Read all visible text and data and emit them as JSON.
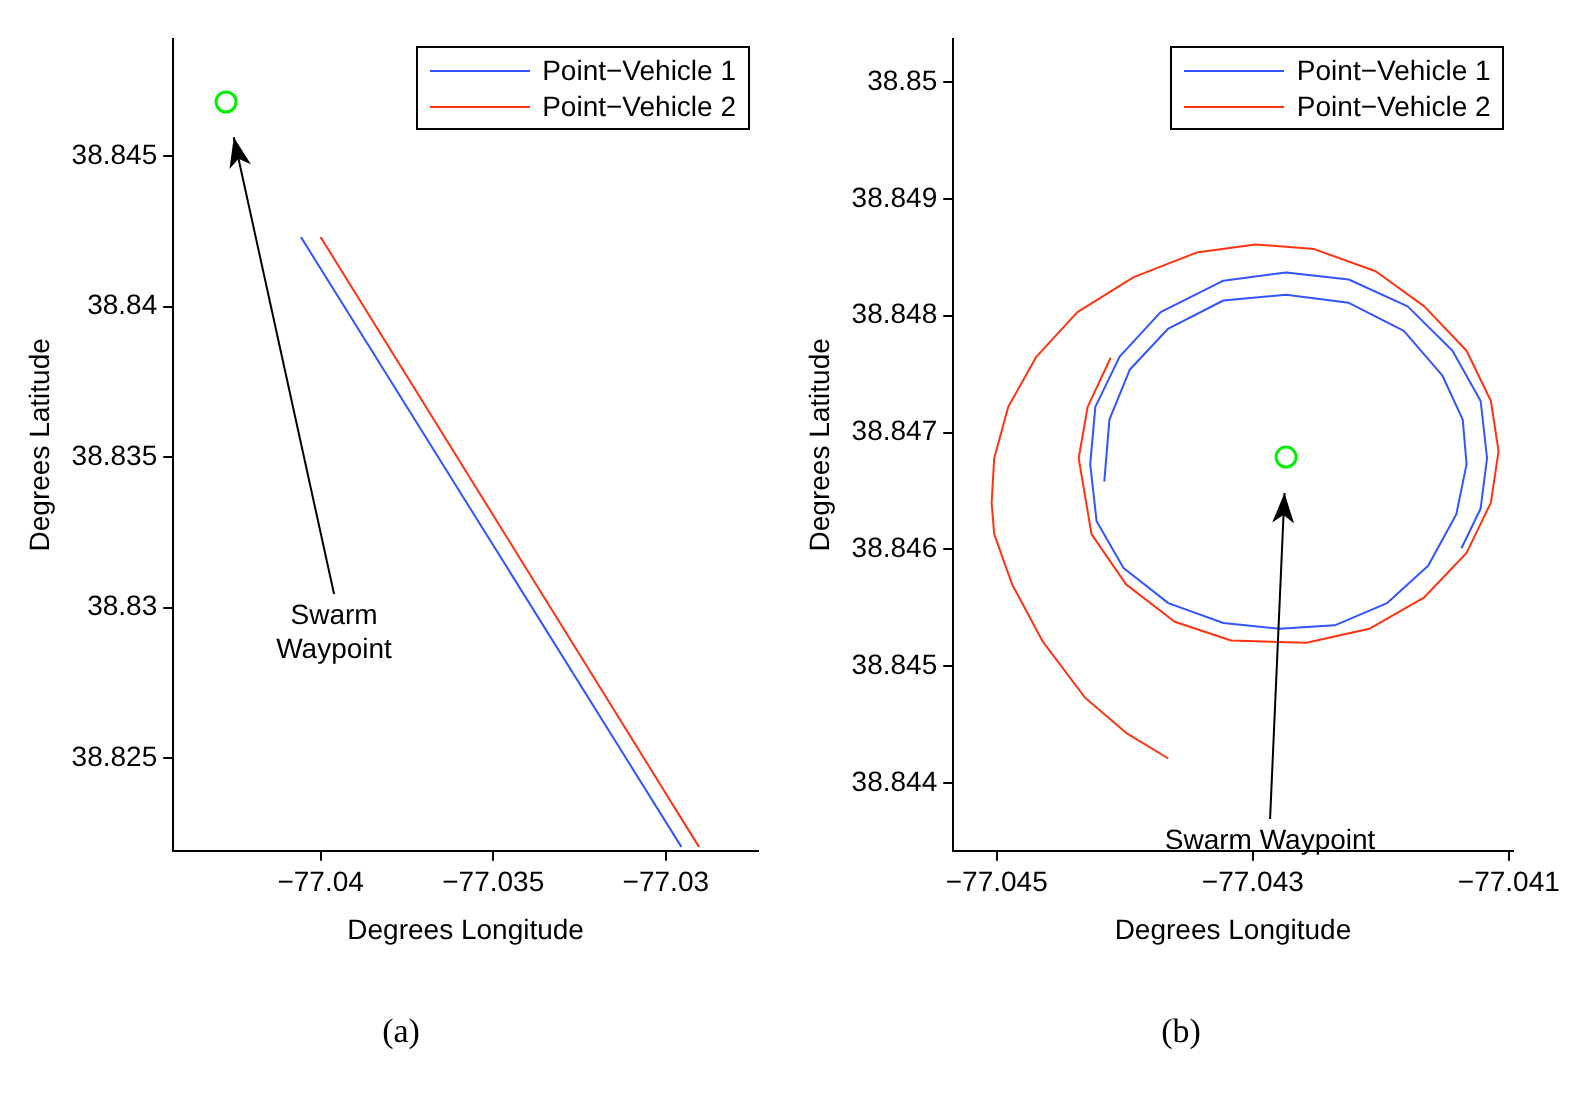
{
  "chart_data": [
    {
      "type": "line",
      "xlabel": "Degrees Longitude",
      "ylabel": "Degrees Latitude",
      "xlim": [
        -77.04427,
        -77.02733
      ],
      "ylim": [
        38.82192,
        38.8489
      ],
      "xticks": [
        -77.04,
        -77.035,
        -77.03
      ],
      "yticks": [
        38.825,
        38.83,
        38.835,
        38.84,
        38.845
      ],
      "grid": false,
      "legend": "top right",
      "line_style": "solid",
      "marker": "none",
      "annotations": [
        "Swarm\nWaypoint",
        "(a)"
      ],
      "series": [
        {
          "name": "Point−Vehicle 1",
          "color": "#3355ff",
          "x": [
            -77.04057,
            -77.02955
          ],
          "values": [
            38.84231,
            38.82205
          ]
        },
        {
          "name": "Point−Vehicle 2",
          "color": "#ff3311",
          "x": [
            -77.04,
            -77.02904
          ],
          "values": [
            38.84231,
            38.82205
          ]
        },
        {
          "type": "scatter",
          "marker": "circle",
          "color": "#00ee00",
          "x": [
            -77.04274
          ],
          "values": [
            38.8468
          ]
        }
      ]
    },
    {
      "type": "line",
      "xlabel": "Degrees Longitude",
      "ylabel": "Degrees Latitude",
      "xlim": [
        -77.04534,
        -77.04097
      ],
      "ylim": [
        38.84342,
        38.85037
      ],
      "xticks": [
        -77.045,
        -77.043,
        -77.041
      ],
      "yticks": [
        38.844,
        38.845,
        38.846,
        38.847,
        38.848,
        38.849,
        38.85
      ],
      "grid": false,
      "legend": "top right",
      "line_style": "solid",
      "marker": "none",
      "annotations": [
        "Swarm Waypoint",
        "(b)"
      ],
      "series": [
        {
          "name": "Point−Vehicle 1",
          "color": "#3355ff",
          "x": [
            -77.04416,
            -77.04412,
            -77.04396,
            -77.04366,
            -77.04323,
            -77.04274,
            -77.04225,
            -77.04182,
            -77.04152,
            -77.04136,
            -77.04133,
            -77.04141,
            -77.04163,
            -77.04195,
            -77.04236,
            -77.04279,
            -77.04323,
            -77.04366,
            -77.04401,
            -77.04422,
            -77.04427,
            -77.04423,
            -77.04404,
            -77.04372,
            -77.04323,
            -77.04274,
            -77.04225,
            -77.04179,
            -77.04144,
            -77.04122,
            -77.04117,
            -77.04122,
            -77.04137
          ],
          "values": [
            38.84658,
            38.84711,
            38.84754,
            38.84789,
            38.84813,
            38.84818,
            38.84811,
            38.84787,
            38.84749,
            38.84711,
            38.84673,
            38.8463,
            38.84586,
            38.84554,
            38.84535,
            38.84532,
            38.84537,
            38.84554,
            38.84584,
            38.84624,
            38.84673,
            38.84722,
            38.84765,
            38.84803,
            38.8483,
            38.84837,
            38.84831,
            38.84808,
            38.8477,
            38.84727,
            38.84678,
            38.84635,
            38.84601
          ]
        },
        {
          "name": "Point−Vehicle 2",
          "color": "#ff3311",
          "x": [
            -77.04366,
            -77.04399,
            -77.04431,
            -77.04464,
            -77.04488,
            -77.04502,
            -77.04504,
            -77.04502,
            -77.04491,
            -77.04469,
            -77.04437,
            -77.04393,
            -77.04344,
            -77.04298,
            -77.04252,
            -77.04204,
            -77.04166,
            -77.04133,
            -77.04114,
            -77.04108,
            -77.04114,
            -77.04133,
            -77.04166,
            -77.04209,
            -77.04258,
            -77.04317,
            -77.04361,
            -77.04399,
            -77.04426,
            -77.04436,
            -77.04429,
            -77.04411
          ],
          "values": [
            38.84421,
            38.84443,
            38.84473,
            38.84521,
            38.8457,
            38.84613,
            38.8464,
            38.84678,
            38.84722,
            38.84765,
            38.84803,
            38.84833,
            38.84854,
            38.84861,
            38.84857,
            38.84838,
            38.84808,
            38.8477,
            38.84727,
            38.84684,
            38.8464,
            38.84597,
            38.84559,
            38.84532,
            38.8452,
            38.84522,
            38.84538,
            38.8457,
            38.84613,
            38.84678,
            38.84722,
            38.84764
          ]
        },
        {
          "type": "scatter",
          "marker": "circle",
          "color": "#00ee00",
          "x": [
            -77.04274
          ],
          "values": [
            38.84679
          ]
        }
      ]
    }
  ]
}
